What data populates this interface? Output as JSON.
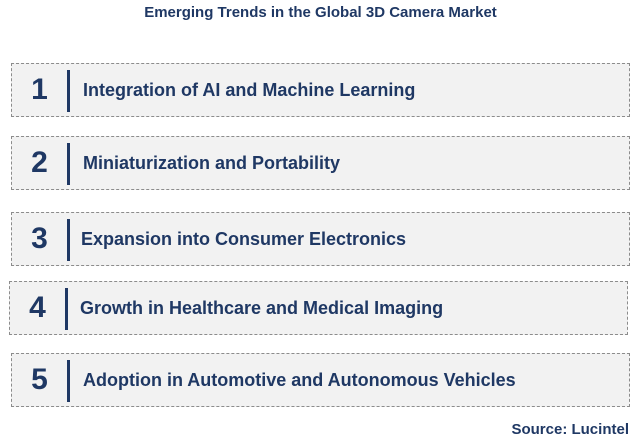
{
  "title": "Emerging Trends in the Global 3D Camera Market",
  "trends": [
    {
      "number": "1",
      "label": "Integration of AI and Machine Learning"
    },
    {
      "number": "2",
      "label": "Miniaturization and Portability"
    },
    {
      "number": "3",
      "label": "Expansion into Consumer Electronics"
    },
    {
      "number": "4",
      "label": "Growth in Healthcare and Medical Imaging"
    },
    {
      "number": "5",
      "label": "Adoption in Automotive and Autonomous Vehicles"
    }
  ],
  "source": "Source: Lucintel",
  "colors": {
    "text": "#1f3864",
    "box_fill": "#f2f2f2",
    "box_border": "#8c8c8c"
  }
}
